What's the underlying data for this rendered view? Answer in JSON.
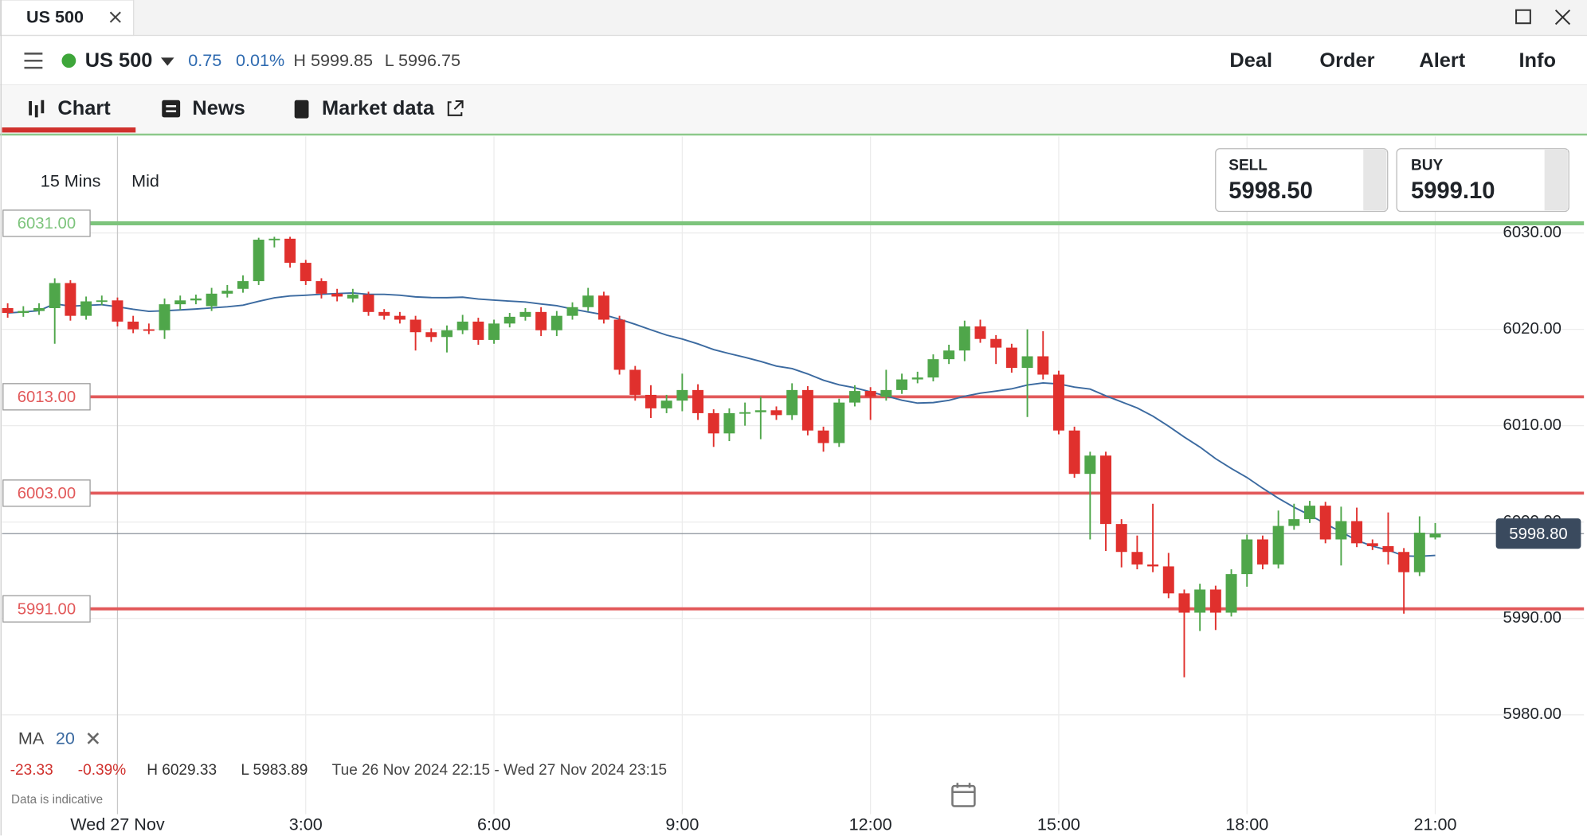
{
  "tab": {
    "title": "US 500"
  },
  "header": {
    "instrument": "US 500",
    "change": "0.75",
    "change_pct": "0.01%",
    "high": "H 5999.85",
    "low": "L 5996.75",
    "actions": [
      "Deal",
      "Order",
      "Alert",
      "Info"
    ]
  },
  "nav": [
    "Chart",
    "News",
    "Market data"
  ],
  "toolbar": {
    "interval": "15 Mins",
    "price_type": "Mid"
  },
  "quotes": {
    "sell_label": "SELL",
    "sell": "5998.50",
    "buy_label": "BUY",
    "buy": "5999.10"
  },
  "chart_data": {
    "type": "candlestick",
    "xlim": [
      -1.84,
      23.37
    ],
    "ylim": [
      5970,
      6040
    ],
    "xticks": [
      {
        "value": 0,
        "label": "Wed 27 Nov"
      },
      {
        "value": 3,
        "label": "3:00"
      },
      {
        "value": 6,
        "label": "6:00"
      },
      {
        "value": 9,
        "label": "9:00"
      },
      {
        "value": 12,
        "label": "12:00"
      },
      {
        "value": 15,
        "label": "15:00"
      },
      {
        "value": 18,
        "label": "18:00"
      },
      {
        "value": 21,
        "label": "21:00"
      }
    ],
    "yticks": [
      {
        "value": 5980,
        "label": "5980.00"
      },
      {
        "value": 5990,
        "label": "5990.00"
      },
      {
        "value": 6000,
        "label": "6000.00"
      },
      {
        "value": 6010,
        "label": "6010.00"
      },
      {
        "value": 6020,
        "label": "6020.00"
      },
      {
        "value": 6030,
        "label": "6030.00"
      }
    ],
    "grid": true,
    "up_color": "#4fa64a",
    "down_color": "#e0302d",
    "levels": [
      {
        "value": 6031,
        "label": "6031.00",
        "color": "#7dc47c"
      },
      {
        "value": 6013,
        "label": "6013.00",
        "color": "#e2595a"
      },
      {
        "value": 6003,
        "label": "6003.00",
        "color": "#e2595a"
      },
      {
        "value": 5991,
        "label": "5991.00",
        "color": "#e2595a"
      }
    ],
    "current": {
      "value": 5998.8,
      "label": "5998.80"
    },
    "ma": {
      "label": "MA",
      "period": 20,
      "color": "#3b6aa0"
    },
    "stats": {
      "change": "-23.33",
      "change_pct": "-0.39%",
      "high": "H 6029.33",
      "low": "L 5983.89",
      "range": "Tue 26 Nov 2024 22:15 - Wed 27 Nov 2024 23:15"
    },
    "note": "Data is indicative",
    "candles": [
      [
        -1.75,
        6022.2,
        6022.7,
        6021.2,
        6021.7
      ],
      [
        -1.5,
        6021.7,
        6022.4,
        6021.3,
        6021.9
      ],
      [
        -1.25,
        6021.9,
        6022.7,
        6021.5,
        6022.2
      ],
      [
        -1.0,
        6022.2,
        6025.3,
        6018.5,
        6024.8
      ],
      [
        -0.75,
        6024.8,
        6025.1,
        6020.9,
        6021.4
      ],
      [
        -0.5,
        6021.4,
        6023.4,
        6021.0,
        6022.9
      ],
      [
        -0.25,
        6022.9,
        6023.5,
        6022.5,
        6023.0
      ],
      [
        0,
        6023.0,
        6023.3,
        6020.3,
        6020.8
      ],
      [
        0.25,
        6020.8,
        6021.4,
        6019.6,
        6020.0
      ],
      [
        0.5,
        6020.0,
        6020.6,
        6019.5,
        6019.9
      ],
      [
        0.75,
        6019.9,
        6023.2,
        6019.0,
        6022.6
      ],
      [
        1.0,
        6022.6,
        6023.5,
        6022.0,
        6023.0
      ],
      [
        1.25,
        6023.0,
        6023.6,
        6022.6,
        6023.2
      ],
      [
        1.5,
        6022.4,
        6024.3,
        6021.9,
        6023.7
      ],
      [
        1.75,
        6023.7,
        6024.6,
        6023.3,
        6024.0
      ],
      [
        2.0,
        6024.2,
        6025.6,
        6023.8,
        6025.0
      ],
      [
        2.25,
        6025.0,
        6029.5,
        6024.6,
        6029.3
      ],
      [
        2.5,
        6029.3,
        6029.6,
        6028.5,
        6029.4
      ],
      [
        2.75,
        6029.4,
        6029.6,
        6026.4,
        6026.9
      ],
      [
        3.0,
        6026.9,
        6027.2,
        6024.6,
        6025.0
      ],
      [
        3.25,
        6025.0,
        6025.3,
        6023.2,
        6023.7
      ],
      [
        3.5,
        6023.7,
        6024.2,
        6022.9,
        6023.4
      ],
      [
        3.75,
        6023.2,
        6024.2,
        6022.8,
        6023.6
      ],
      [
        4.0,
        6023.6,
        6023.9,
        6021.4,
        6021.8
      ],
      [
        4.25,
        6021.8,
        6022.1,
        6021.0,
        6021.4
      ],
      [
        4.5,
        6021.4,
        6021.8,
        6020.6,
        6021.0
      ],
      [
        4.75,
        6021.0,
        6021.4,
        6017.8,
        6019.7
      ],
      [
        5.0,
        6019.7,
        6020.1,
        6018.7,
        6019.2
      ],
      [
        5.25,
        6019.2,
        6020.4,
        6017.6,
        6019.9
      ],
      [
        5.5,
        6019.9,
        6021.5,
        6019.5,
        6020.8
      ],
      [
        5.75,
        6020.8,
        6021.2,
        6018.4,
        6018.9
      ],
      [
        6.0,
        6018.9,
        6021.0,
        6018.5,
        6020.6
      ],
      [
        6.25,
        6020.6,
        6021.7,
        6020.2,
        6021.3
      ],
      [
        6.5,
        6021.3,
        6022.2,
        6020.9,
        6021.8
      ],
      [
        6.75,
        6021.8,
        6022.3,
        6019.3,
        6019.9
      ],
      [
        7.0,
        6019.9,
        6021.9,
        6019.3,
        6021.4
      ],
      [
        7.25,
        6021.4,
        6022.8,
        6021.0,
        6022.3
      ],
      [
        7.5,
        6022.3,
        6024.3,
        6021.9,
        6023.5
      ],
      [
        7.75,
        6023.5,
        6023.9,
        6020.6,
        6021.0
      ],
      [
        8.0,
        6021.0,
        6021.4,
        6015.3,
        6015.8
      ],
      [
        8.25,
        6015.8,
        6016.2,
        6012.6,
        6013.2
      ],
      [
        8.5,
        6013.2,
        6014.2,
        6010.8,
        6011.8
      ],
      [
        8.75,
        6011.8,
        6013.2,
        6011.3,
        6012.6
      ],
      [
        9.0,
        6012.6,
        6015.4,
        6011.5,
        6013.7
      ],
      [
        9.25,
        6013.7,
        6014.3,
        6010.6,
        6011.3
      ],
      [
        9.5,
        6011.3,
        6011.7,
        6007.8,
        6009.2
      ],
      [
        9.75,
        6009.2,
        6011.8,
        6008.4,
        6011.3
      ],
      [
        10.0,
        6011.3,
        6012.4,
        6010.0,
        6011.4
      ],
      [
        10.25,
        6011.4,
        6013.0,
        6008.6,
        6011.6
      ],
      [
        10.5,
        6011.6,
        6012.0,
        6010.6,
        6011.1
      ],
      [
        10.75,
        6011.1,
        6014.4,
        6010.6,
        6013.7
      ],
      [
        11.0,
        6013.7,
        6014.1,
        6009.0,
        6009.5
      ],
      [
        11.25,
        6009.5,
        6009.9,
        6007.3,
        6008.2
      ],
      [
        11.5,
        6008.2,
        6012.8,
        6007.8,
        6012.4
      ],
      [
        11.75,
        6012.4,
        6014.2,
        6012.0,
        6013.6
      ],
      [
        12.0,
        6013.6,
        6014.0,
        6010.6,
        6013.0
      ],
      [
        12.25,
        6013.0,
        6015.8,
        6012.6,
        6013.7
      ],
      [
        12.5,
        6013.7,
        6015.4,
        6013.3,
        6014.8
      ],
      [
        12.75,
        6014.8,
        6015.6,
        6014.4,
        6015.0
      ],
      [
        13.0,
        6015.0,
        6017.4,
        6014.6,
        6016.9
      ],
      [
        13.25,
        6016.9,
        6018.4,
        6016.4,
        6017.8
      ],
      [
        13.5,
        6017.8,
        6020.9,
        6016.7,
        6020.3
      ],
      [
        13.75,
        6020.3,
        6021.0,
        6018.6,
        6019.0
      ],
      [
        14.0,
        6019.0,
        6019.4,
        6016.4,
        6018.1
      ],
      [
        14.25,
        6018.1,
        6018.5,
        6015.5,
        6016.0
      ],
      [
        14.5,
        6016.0,
        6020.0,
        6010.9,
        6017.2
      ],
      [
        14.75,
        6017.2,
        6019.8,
        6014.8,
        6015.3
      ],
      [
        15.0,
        6015.3,
        6015.7,
        6009.1,
        6009.5
      ],
      [
        15.25,
        6009.5,
        6009.9,
        6004.6,
        6005.0
      ],
      [
        15.5,
        6005.0,
        6007.3,
        5998.2,
        6006.9
      ],
      [
        15.75,
        6006.9,
        6007.3,
        5997.0,
        5999.8
      ],
      [
        16.0,
        5999.8,
        6000.3,
        5995.3,
        5996.9
      ],
      [
        16.25,
        5996.9,
        5998.6,
        5995.1,
        5995.6
      ],
      [
        16.5,
        5995.6,
        6001.9,
        5994.8,
        5995.4
      ],
      [
        16.75,
        5995.4,
        5996.8,
        5992.1,
        5992.6
      ],
      [
        17.0,
        5992.6,
        5993.0,
        5983.9,
        5990.6
      ],
      [
        17.25,
        5990.6,
        5993.6,
        5988.7,
        5993.0
      ],
      [
        17.5,
        5993.0,
        5993.4,
        5988.8,
        5990.6
      ],
      [
        17.75,
        5990.6,
        5995.1,
        5990.2,
        5994.6
      ],
      [
        18.0,
        5994.6,
        5998.7,
        5993.3,
        5998.2
      ],
      [
        18.25,
        5998.2,
        5998.6,
        5995.1,
        5995.6
      ],
      [
        18.5,
        5995.6,
        6001.2,
        5995.2,
        5999.6
      ],
      [
        18.75,
        5999.6,
        6001.9,
        5999.2,
        6000.3
      ],
      [
        19.0,
        6000.3,
        6002.2,
        5999.9,
        6001.7
      ],
      [
        19.25,
        6001.7,
        6002.1,
        5997.8,
        5998.2
      ],
      [
        19.5,
        5998.2,
        6001.6,
        5995.5,
        6000.1
      ],
      [
        19.75,
        6000.1,
        6001.5,
        5997.4,
        5997.8
      ],
      [
        20.0,
        5997.8,
        5998.2,
        5997.1,
        5997.5
      ],
      [
        20.25,
        5997.5,
        6001.0,
        5995.6,
        5996.9
      ],
      [
        20.5,
        5996.9,
        5997.3,
        5990.5,
        5994.8
      ],
      [
        20.75,
        5994.8,
        6000.6,
        5994.4,
        5998.9
      ],
      [
        21.0,
        5998.4,
        5999.9,
        5998.2,
        5998.8
      ]
    ]
  }
}
